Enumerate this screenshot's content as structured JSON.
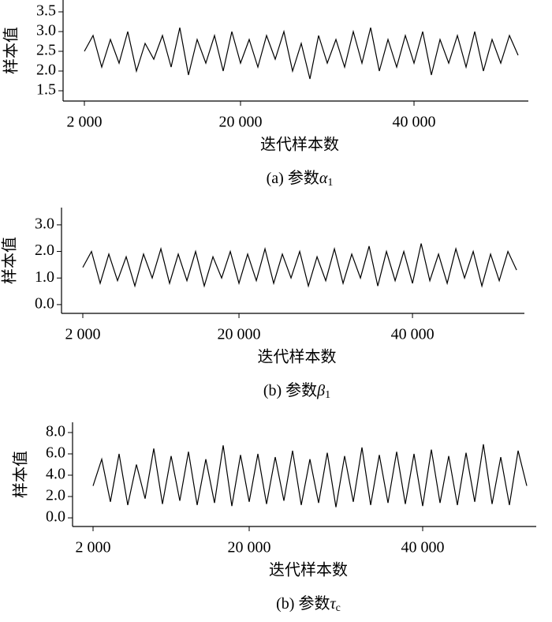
{
  "chart_data": [
    {
      "type": "line",
      "ylabel": "样本值",
      "xlabel": "迭代样本数",
      "caption_prefix": "(a) 参数",
      "caption_symbol": "α",
      "caption_subscript": "1",
      "xlim": [
        -455,
        53180
      ],
      "ylim": [
        1.24,
        3.8
      ],
      "xticks": [
        {
          "value": 2000,
          "label": "2 000"
        },
        {
          "value": 20000,
          "label": "20 000"
        },
        {
          "value": 40000,
          "label": "40 000"
        }
      ],
      "yticks": [
        1.5,
        {
          "value": 2,
          "label": "2.0"
        },
        2.5,
        {
          "value": 3,
          "label": "3.0"
        },
        3.5
      ],
      "x": [
        2000,
        3000,
        4000,
        5000,
        6000,
        7000,
        8000,
        9000,
        10000,
        11000,
        12000,
        13000,
        14000,
        15000,
        16000,
        17000,
        18000,
        19000,
        20000,
        21000,
        22000,
        23000,
        24000,
        25000,
        26000,
        27000,
        28000,
        29000,
        30000,
        31000,
        32000,
        33000,
        34000,
        35000,
        36000,
        37000,
        38000,
        39000,
        40000,
        41000,
        42000,
        43000,
        44000,
        45000,
        46000,
        47000,
        48000,
        49000,
        50000,
        51000,
        52000
      ],
      "series": [
        {
          "color": "#000000",
          "values": [
            2.5,
            2.9,
            2.1,
            2.8,
            2.2,
            3.0,
            2.0,
            2.7,
            2.3,
            2.9,
            2.1,
            3.1,
            1.9,
            2.8,
            2.2,
            2.9,
            2.0,
            3.0,
            2.2,
            2.8,
            2.1,
            2.9,
            2.3,
            3.0,
            2.0,
            2.7,
            1.8,
            2.9,
            2.2,
            2.8,
            2.1,
            3.0,
            2.2,
            3.1,
            2.0,
            2.8,
            2.1,
            2.9,
            2.2,
            3.0,
            1.9,
            2.8,
            2.2,
            2.9,
            2.1,
            3.0,
            2.0,
            2.8,
            2.2,
            2.9,
            2.4
          ]
        }
      ]
    },
    {
      "type": "line",
      "ylabel": "样本值",
      "xlabel": "迭代样本数",
      "caption_prefix": "(b) 参数",
      "caption_symbol": "β",
      "caption_subscript": "1",
      "xlim": [
        -455,
        52900
      ],
      "ylim": [
        -0.33,
        3.65
      ],
      "xticks": [
        {
          "value": 2000,
          "label": "2 000"
        },
        {
          "value": 20000,
          "label": "20 000"
        },
        {
          "value": 40000,
          "label": "40 000"
        }
      ],
      "yticks": [
        {
          "value": 0,
          "label": "0.0"
        },
        {
          "value": 1,
          "label": "1.0"
        },
        {
          "value": 2,
          "label": "2.0"
        },
        {
          "value": 3,
          "label": "3.0"
        }
      ],
      "x": [
        2000,
        3000,
        4000,
        5000,
        6000,
        7000,
        8000,
        9000,
        10000,
        11000,
        12000,
        13000,
        14000,
        15000,
        16000,
        17000,
        18000,
        19000,
        20000,
        21000,
        22000,
        23000,
        24000,
        25000,
        26000,
        27000,
        28000,
        29000,
        30000,
        31000,
        32000,
        33000,
        34000,
        35000,
        36000,
        37000,
        38000,
        39000,
        40000,
        41000,
        42000,
        43000,
        44000,
        45000,
        46000,
        47000,
        48000,
        49000,
        50000,
        51000,
        52000
      ],
      "series": [
        {
          "color": "#000000",
          "values": [
            1.4,
            2.0,
            0.8,
            1.9,
            0.9,
            1.8,
            0.7,
            1.9,
            1.0,
            2.1,
            0.8,
            1.9,
            0.9,
            2.0,
            0.7,
            1.8,
            1.0,
            2.0,
            0.8,
            1.9,
            0.9,
            2.1,
            0.8,
            1.9,
            1.0,
            2.0,
            0.7,
            1.8,
            0.9,
            2.1,
            0.8,
            1.9,
            1.0,
            2.2,
            0.7,
            2.0,
            0.9,
            2.0,
            0.8,
            2.3,
            0.9,
            1.9,
            0.8,
            2.1,
            1.0,
            2.0,
            0.7,
            1.9,
            0.9,
            2.0,
            1.3
          ]
        }
      ]
    },
    {
      "type": "line",
      "ylabel": "样本值",
      "xlabel": "迭代样本数",
      "caption_prefix": "(b) 参数",
      "caption_symbol": "τ",
      "caption_subscript": "c",
      "xlim": [
        -364,
        53090
      ],
      "ylim": [
        -0.81,
        8.96
      ],
      "xticks": [
        {
          "value": 2000,
          "label": "2 000"
        },
        {
          "value": 20000,
          "label": "20 000"
        },
        {
          "value": 40000,
          "label": "40 000"
        }
      ],
      "yticks": [
        {
          "value": 0,
          "label": "0.0"
        },
        {
          "value": 2,
          "label": "2.0"
        },
        {
          "value": 4,
          "label": "4.0"
        },
        {
          "value": 6,
          "label": "6.0"
        },
        {
          "value": 8,
          "label": "8.0"
        }
      ],
      "x": [
        2000,
        3000,
        4000,
        5000,
        6000,
        7000,
        8000,
        9000,
        10000,
        11000,
        12000,
        13000,
        14000,
        15000,
        16000,
        17000,
        18000,
        19000,
        20000,
        21000,
        22000,
        23000,
        24000,
        25000,
        26000,
        27000,
        28000,
        29000,
        30000,
        31000,
        32000,
        33000,
        34000,
        35000,
        36000,
        37000,
        38000,
        39000,
        40000,
        41000,
        42000,
        43000,
        44000,
        45000,
        46000,
        47000,
        48000,
        49000,
        50000,
        51000,
        52000
      ],
      "series": [
        {
          "color": "#000000",
          "values": [
            3.0,
            5.5,
            1.5,
            6.0,
            1.2,
            5.0,
            1.8,
            6.5,
            1.3,
            5.8,
            1.6,
            6.2,
            1.2,
            5.5,
            1.4,
            6.8,
            1.1,
            5.9,
            1.5,
            6.0,
            1.3,
            5.7,
            1.6,
            6.3,
            1.2,
            5.5,
            1.4,
            6.1,
            1.0,
            5.8,
            1.5,
            6.6,
            1.2,
            5.9,
            1.4,
            6.2,
            1.3,
            6.0,
            1.1,
            6.4,
            1.4,
            5.8,
            1.2,
            6.1,
            1.5,
            6.9,
            1.3,
            5.7,
            1.2,
            6.3,
            3.0
          ]
        }
      ]
    }
  ]
}
